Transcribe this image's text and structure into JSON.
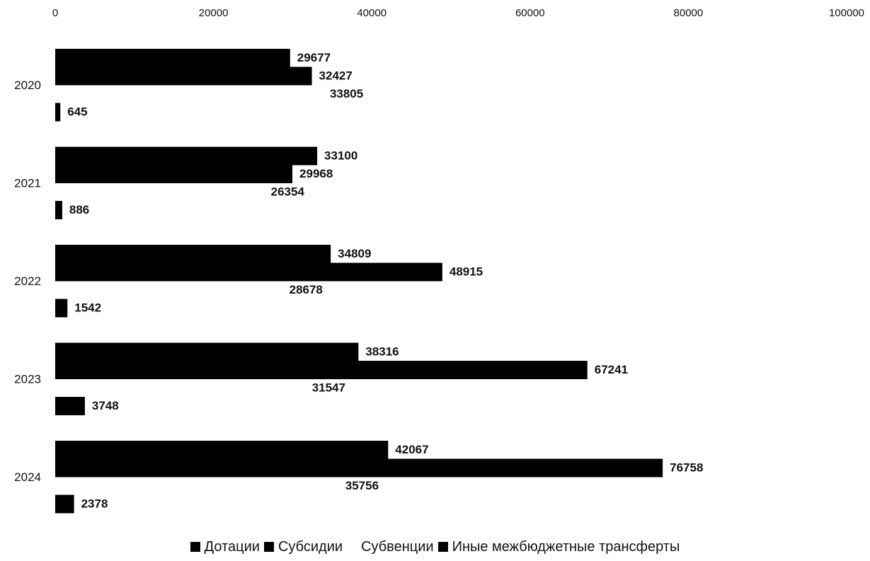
{
  "chart_data": {
    "type": "bar",
    "orientation": "horizontal",
    "categories": [
      "2020",
      "2021",
      "2022",
      "2023",
      "2024"
    ],
    "series": [
      {
        "name": "Дотации",
        "values": [
          29677,
          33100,
          34809,
          38316,
          42067
        ],
        "color": "#000000"
      },
      {
        "name": "Субсидии",
        "values": [
          32427,
          29968,
          48915,
          67241,
          76758
        ],
        "color": "#000000"
      },
      {
        "name": "Субвенции",
        "values": [
          33805,
          26354,
          28678,
          31547,
          35756
        ],
        "color": "#ffffff"
      },
      {
        "name": "Иные межбюджетные трансферты",
        "values": [
          645,
          886,
          1542,
          3748,
          2378
        ],
        "color": "#000000"
      }
    ],
    "xlim": [
      0,
      100000
    ],
    "xticks": [
      "0",
      "20000",
      "40000",
      "60000",
      "80000",
      "100000"
    ],
    "title": "",
    "xlabel": "",
    "ylabel": "",
    "grid": false,
    "legend_position": "bottom"
  }
}
